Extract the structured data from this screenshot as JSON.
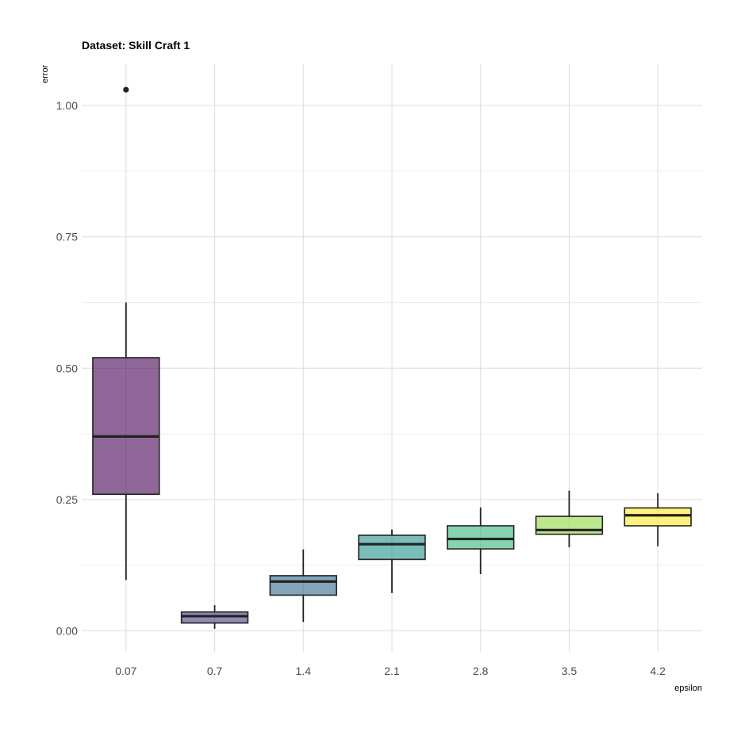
{
  "chart_data": {
    "type": "boxplot",
    "title": "Dataset: Skill Craft 1",
    "xlabel": "epsilon",
    "ylabel": "error",
    "categories": [
      "0.07",
      "0.7",
      "1.4",
      "2.1",
      "2.8",
      "3.5",
      "4.2"
    ],
    "ylim": [
      -0.04,
      1.08
    ],
    "y_ticks": [
      0.0,
      0.25,
      0.5,
      0.75,
      1.0
    ],
    "y_tick_labels": [
      "0.00",
      "0.25",
      "0.50",
      "0.75",
      "1.00"
    ],
    "grid": true,
    "legend": "none",
    "boxes": [
      {
        "category": "0.07",
        "whisker_low": 0.097,
        "q1": 0.26,
        "median": 0.37,
        "q3": 0.52,
        "whisker_high": 0.625,
        "outliers": [
          1.03
        ],
        "color": "#440154"
      },
      {
        "category": "0.7",
        "whisker_low": 0.004,
        "q1": 0.015,
        "median": 0.028,
        "q3": 0.036,
        "whisker_high": 0.049,
        "outliers": [],
        "color": "#443A83"
      },
      {
        "category": "1.4",
        "whisker_low": 0.017,
        "q1": 0.068,
        "median": 0.094,
        "q3": 0.105,
        "whisker_high": 0.155,
        "outliers": [],
        "color": "#31688E"
      },
      {
        "category": "2.1",
        "whisker_low": 0.072,
        "q1": 0.136,
        "median": 0.165,
        "q3": 0.182,
        "whisker_high": 0.193,
        "outliers": [],
        "color": "#21908C"
      },
      {
        "category": "2.8",
        "whisker_low": 0.108,
        "q1": 0.156,
        "median": 0.175,
        "q3": 0.2,
        "whisker_high": 0.235,
        "outliers": [],
        "color": "#35B779"
      },
      {
        "category": "3.5",
        "whisker_low": 0.159,
        "q1": 0.184,
        "median": 0.192,
        "q3": 0.218,
        "whisker_high": 0.267,
        "outliers": [],
        "color": "#8FD744"
      },
      {
        "category": "4.2",
        "whisker_low": 0.161,
        "q1": 0.2,
        "median": 0.22,
        "q3": 0.234,
        "whisker_high": 0.262,
        "outliers": [],
        "color": "#FDE725"
      }
    ]
  }
}
